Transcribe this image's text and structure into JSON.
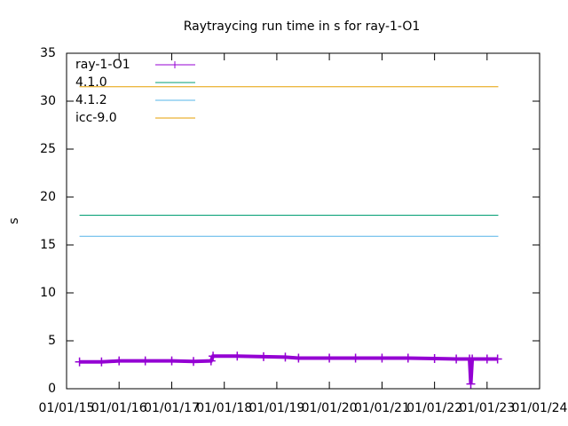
{
  "chart_data": {
    "type": "line",
    "title": "Raytraycing run time in s for ray-1-O1",
    "ylabel": "s",
    "xlim": [
      "2015-01-01",
      "2024-01-01"
    ],
    "xticks": [
      {
        "value": "2015-01-01",
        "label": "01/01/15"
      },
      {
        "value": "2016-01-01",
        "label": "01/01/16"
      },
      {
        "value": "2017-01-01",
        "label": "01/01/17"
      },
      {
        "value": "2018-01-01",
        "label": "01/01/18"
      },
      {
        "value": "2019-01-01",
        "label": "01/01/19"
      },
      {
        "value": "2020-01-01",
        "label": "01/01/20"
      },
      {
        "value": "2021-01-01",
        "label": "01/01/21"
      },
      {
        "value": "2022-01-01",
        "label": "01/01/22"
      },
      {
        "value": "2023-01-01",
        "label": "01/01/23"
      },
      {
        "value": "2024-01-01",
        "label": "01/01/24"
      }
    ],
    "ylim": [
      0,
      35
    ],
    "yticks": [
      0,
      5,
      10,
      15,
      20,
      25,
      30,
      35
    ],
    "legend": "top-left",
    "series": [
      {
        "name": "ray-1-O1",
        "color": "#9400d3",
        "markers": true,
        "x": [
          "2015-04-01",
          "2015-09-01",
          "2016-01-01",
          "2016-07-01",
          "2017-01-01",
          "2017-06-01",
          "2017-10-01",
          "2017-10-15",
          "2018-04-01",
          "2018-10-01",
          "2019-03-01",
          "2019-06-01",
          "2020-01-01",
          "2020-07-01",
          "2021-01-01",
          "2021-07-01",
          "2022-01-01",
          "2022-06-01",
          "2022-09-01",
          "2022-09-10",
          "2022-09-20",
          "2023-01-01",
          "2023-03-15"
        ],
        "values": [
          2.8,
          2.8,
          2.9,
          2.9,
          2.9,
          2.85,
          2.9,
          3.4,
          3.4,
          3.35,
          3.3,
          3.2,
          3.2,
          3.2,
          3.2,
          3.2,
          3.15,
          3.1,
          3.1,
          0.5,
          3.1,
          3.1,
          3.1
        ]
      },
      {
        "name": "4.1.0",
        "color": "#009e73",
        "x": [
          "2015-04-01",
          "2023-03-20"
        ],
        "values": [
          18.1,
          18.1
        ]
      },
      {
        "name": "4.1.2",
        "color": "#56b4e9",
        "x": [
          "2015-04-01",
          "2023-03-20"
        ],
        "values": [
          15.9,
          15.9
        ]
      },
      {
        "name": "icc-9.0",
        "color": "#e69f00",
        "x": [
          "2015-04-01",
          "2023-03-20"
        ],
        "values": [
          31.5,
          31.5
        ]
      }
    ]
  }
}
